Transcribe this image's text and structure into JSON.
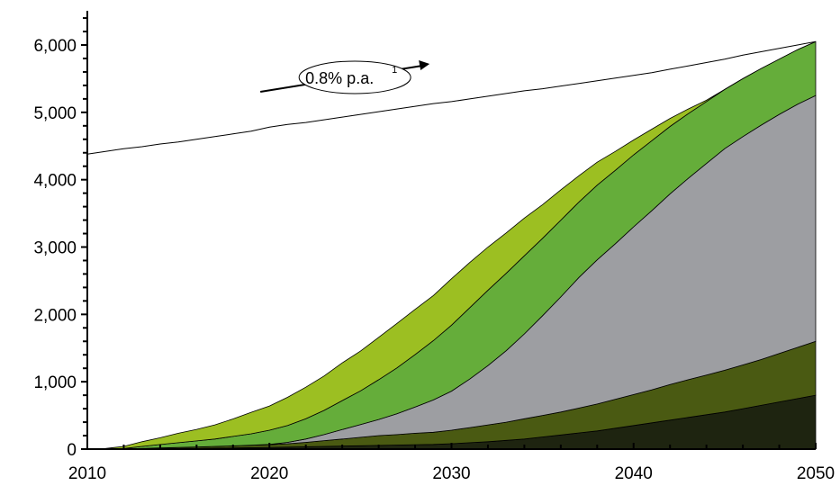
{
  "chart_data": {
    "type": "area",
    "x": [
      2010,
      2011,
      2012,
      2013,
      2014,
      2015,
      2016,
      2017,
      2018,
      2019,
      2020,
      2021,
      2022,
      2023,
      2024,
      2025,
      2026,
      2027,
      2028,
      2029,
      2030,
      2031,
      2032,
      2033,
      2034,
      2035,
      2036,
      2037,
      2038,
      2039,
      2040,
      2041,
      2042,
      2043,
      2044,
      2045,
      2046,
      2047,
      2048,
      2049,
      2050
    ],
    "xlim": [
      2010,
      2050
    ],
    "ylim": [
      0,
      6400
    ],
    "xticks": [
      "2010",
      "2020",
      "2030",
      "2040",
      "2050"
    ],
    "yticks": [
      "0",
      "1,000",
      "2,000",
      "3,000",
      "4,000",
      "5,000",
      "6,000"
    ],
    "stacked": true,
    "series": [
      {
        "color": "#1e2410",
        "values": [
          0,
          0,
          0,
          5,
          8,
          10,
          12,
          15,
          18,
          22,
          25,
          30,
          35,
          40,
          45,
          50,
          55,
          60,
          65,
          70,
          80,
          95,
          110,
          130,
          150,
          180,
          210,
          240,
          270,
          310,
          350,
          390,
          430,
          470,
          510,
          550,
          600,
          650,
          700,
          750,
          800
        ]
      },
      {
        "color": "#4a5a12",
        "values": [
          0,
          0,
          0,
          5,
          10,
          15,
          20,
          25,
          30,
          35,
          40,
          50,
          65,
          85,
          105,
          125,
          145,
          155,
          170,
          180,
          200,
          225,
          250,
          270,
          300,
          320,
          340,
          370,
          400,
          430,
          460,
          490,
          530,
          560,
          590,
          620,
          650,
          680,
          720,
          760,
          800
        ]
      },
      {
        "color": "#9d9ea2",
        "values": [
          0,
          0,
          0,
          0,
          0,
          0,
          0,
          0,
          0,
          0,
          5,
          20,
          50,
          90,
          140,
          190,
          240,
          310,
          390,
          480,
          580,
          720,
          880,
          1060,
          1260,
          1480,
          1710,
          1940,
          2140,
          2310,
          2490,
          2660,
          2830,
          2990,
          3140,
          3290,
          3390,
          3480,
          3550,
          3610,
          3650
        ]
      },
      {
        "color": "#65ad3a",
        "values": [
          0,
          0,
          10,
          30,
          50,
          70,
          90,
          110,
          140,
          170,
          210,
          250,
          300,
          360,
          430,
          500,
          590,
          680,
          780,
          880,
          980,
          1060,
          1120,
          1150,
          1160,
          1150,
          1140,
          1120,
          1110,
          1090,
          1070,
          1040,
          1000,
          960,
          920,
          880,
          860,
          840,
          820,
          810,
          800
        ]
      },
      {
        "color": "#9cbf22",
        "values": [
          0,
          10,
          30,
          70,
          100,
          140,
          170,
          210,
          260,
          320,
          360,
          420,
          470,
          510,
          560,
          590,
          630,
          660,
          670,
          670,
          690,
          670,
          640,
          600,
          560,
          500,
          450,
          390,
          340,
          280,
          220,
          170,
          120,
          70,
          20,
          0,
          0,
          0,
          0,
          0,
          0
        ]
      }
    ],
    "reference_line": {
      "values": [
        4380,
        4420,
        4460,
        4490,
        4530,
        4560,
        4600,
        4640,
        4680,
        4720,
        4780,
        4820,
        4850,
        4890,
        4930,
        4970,
        5010,
        5050,
        5090,
        5130,
        5160,
        5200,
        5240,
        5280,
        5320,
        5350,
        5390,
        5430,
        5470,
        5510,
        5550,
        5590,
        5640,
        5690,
        5740,
        5790,
        5850,
        5900,
        5950,
        6000,
        6050
      ],
      "color": "#000000"
    },
    "annotation": {
      "text": "0.8% p.a.",
      "superscript": "1"
    },
    "grid": false,
    "legend": "none"
  }
}
